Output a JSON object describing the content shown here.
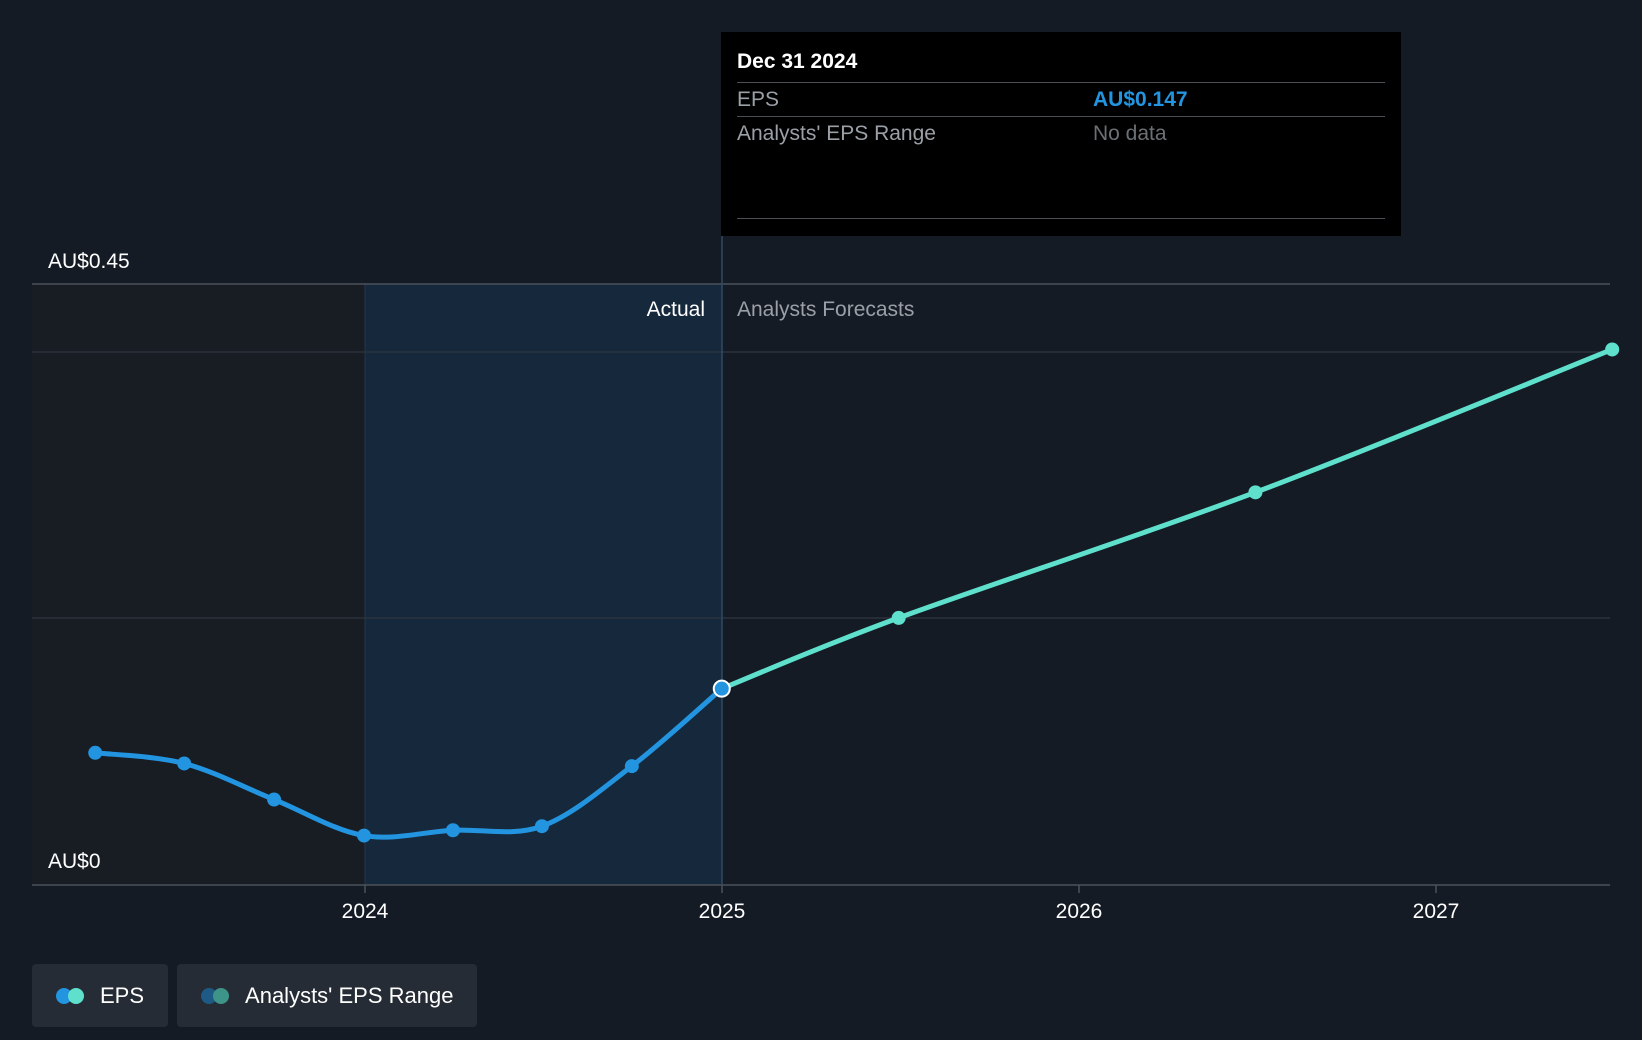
{
  "chart_data": {
    "type": "line",
    "x_axis": {
      "ticks": [
        "2024",
        "2025",
        "2026",
        "2027"
      ]
    },
    "y_axis": {
      "top_label": "AU$0.45",
      "bottom_label": "AU$0",
      "ylim": [
        0,
        0.45
      ]
    },
    "regions": {
      "actual_label": "Actual",
      "forecast_label": "Analysts Forecasts"
    },
    "series": [
      {
        "name": "EPS",
        "segment": "actual",
        "color": "#2394df",
        "points": [
          {
            "x": "2023-03-31",
            "y": 0.099
          },
          {
            "x": "2023-06-30",
            "y": 0.091
          },
          {
            "x": "2023-09-30",
            "y": 0.064
          },
          {
            "x": "2023-12-31",
            "y": 0.037
          },
          {
            "x": "2024-03-31",
            "y": 0.041
          },
          {
            "x": "2024-06-30",
            "y": 0.044
          },
          {
            "x": "2024-09-30",
            "y": 0.089
          },
          {
            "x": "2024-12-31",
            "y": 0.147
          }
        ]
      },
      {
        "name": "EPS",
        "segment": "forecast",
        "color": "#5ee0cd",
        "points": [
          {
            "x": "2024-12-31",
            "y": 0.147
          },
          {
            "x": "2025-06-30",
            "y": 0.2
          },
          {
            "x": "2026-06-30",
            "y": 0.294
          },
          {
            "x": "2027-06-30",
            "y": 0.401
          }
        ]
      }
    ],
    "grid": true
  },
  "tooltip": {
    "date": "Dec 31 2024",
    "eps_label": "EPS",
    "eps_value": "AU$0.147",
    "range_label": "Analysts' EPS Range",
    "range_value": "No data"
  },
  "legend": {
    "eps_label": "EPS",
    "range_label": "Analysts' EPS Range",
    "eps_colors": [
      "#2394df",
      "#5ee0cd"
    ],
    "range_colors": [
      "#1e5a86",
      "#3d9488"
    ]
  }
}
